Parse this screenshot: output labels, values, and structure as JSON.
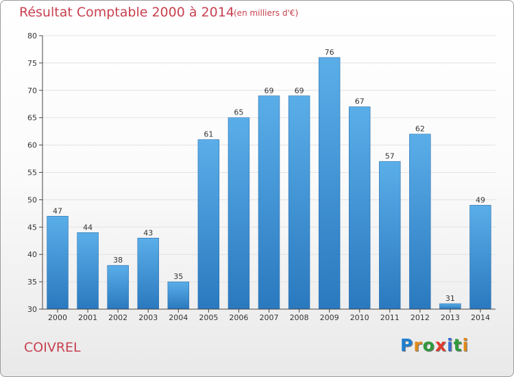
{
  "header": {
    "title": "Résultat Comptable 2000 à 2014",
    "subtitle": "(en milliers d'€)"
  },
  "footer": {
    "place": "COIVREL",
    "logo": {
      "letters": [
        "P",
        "r",
        "o",
        "x",
        "i",
        "t",
        "i"
      ],
      "colors": [
        "#1f7fd0",
        "#e08a1c",
        "#2e9a3a",
        "#e23a2c",
        "#3a6fd0",
        "#2e9a3a",
        "#e08a1c"
      ]
    }
  },
  "chart_data": {
    "type": "bar",
    "title": "Résultat Comptable 2000 à 2014",
    "subtitle": "(en milliers d'€)",
    "xlabel": "",
    "ylabel": "",
    "categories": [
      "2000",
      "2001",
      "2002",
      "2003",
      "2004",
      "2005",
      "2006",
      "2007",
      "2008",
      "2009",
      "2010",
      "2011",
      "2012",
      "2013",
      "2014"
    ],
    "values": [
      47,
      44,
      38,
      43,
      35,
      61,
      65,
      69,
      69,
      76,
      67,
      57,
      62,
      31,
      49
    ],
    "ylim": [
      30,
      80
    ],
    "yticks": [
      30,
      35,
      40,
      45,
      50,
      55,
      60,
      65,
      70,
      75,
      80
    ],
    "grid": true,
    "colors": {
      "bar_top": "#5aaee8",
      "bar_bottom": "#2a79bf",
      "grid": "#e2e2e2",
      "axis": "#444444"
    }
  }
}
